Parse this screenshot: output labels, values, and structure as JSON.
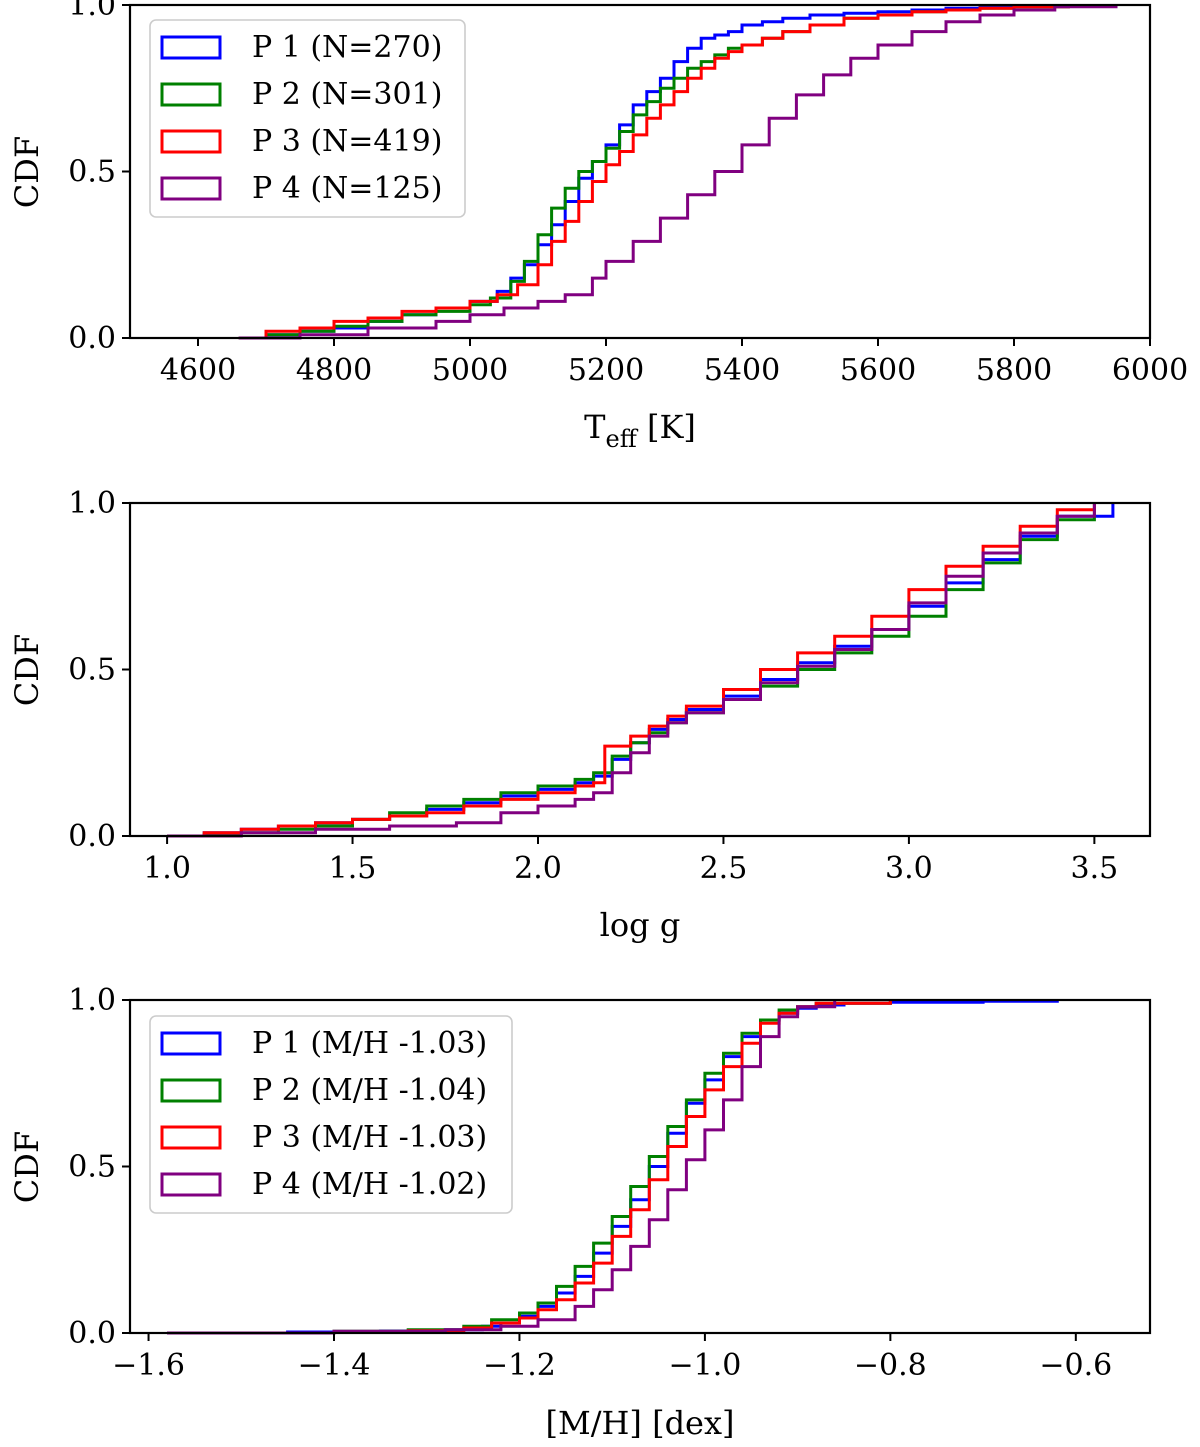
{
  "colors": {
    "P1": "#0000ff",
    "P2": "#008000",
    "P3": "#ff0000",
    "P4": "#800080"
  },
  "chart_data": [
    {
      "type": "line",
      "subtype": "step-cdf",
      "title": "",
      "xlabel_main": "T",
      "xlabel_sub": "eff",
      "xlabel_tail": " [K]",
      "ylabel": "CDF",
      "xlim": [
        4500,
        6000
      ],
      "ylim": [
        0,
        1.0
      ],
      "xticks": [
        4600,
        4800,
        5000,
        5200,
        5400,
        5600,
        5800,
        6000
      ],
      "xtick_labels": [
        "4600",
        "4800",
        "5000",
        "5200",
        "5400",
        "5600",
        "5800",
        "6000"
      ],
      "yticks": [
        0.0,
        0.5,
        1.0
      ],
      "ytick_labels": [
        "0.0",
        "0.5",
        "1.0"
      ],
      "legend": {
        "placement": "upper-left",
        "labels": [
          "P 1 (N=270)",
          "P 2 (N=301)",
          "P 3 (N=419)",
          "P 4 (N=125)"
        ]
      },
      "series": [
        {
          "name": "P 1",
          "color": "#0000ff",
          "x": [
            4660,
            4700,
            4750,
            4800,
            4850,
            4900,
            4950,
            5000,
            5040,
            5060,
            5080,
            5100,
            5120,
            5140,
            5160,
            5180,
            5200,
            5220,
            5240,
            5260,
            5280,
            5300,
            5320,
            5340,
            5360,
            5380,
            5400,
            5430,
            5460,
            5500,
            5550,
            5600,
            5650,
            5700,
            5750,
            5800,
            5870
          ],
          "y": [
            0.0,
            0.01,
            0.02,
            0.03,
            0.05,
            0.07,
            0.09,
            0.11,
            0.14,
            0.18,
            0.22,
            0.28,
            0.34,
            0.41,
            0.48,
            0.53,
            0.58,
            0.64,
            0.7,
            0.74,
            0.78,
            0.83,
            0.87,
            0.9,
            0.91,
            0.92,
            0.94,
            0.95,
            0.96,
            0.97,
            0.975,
            0.98,
            0.985,
            0.99,
            0.993,
            0.996,
            1.0
          ]
        },
        {
          "name": "P 2",
          "color": "#008000",
          "x": [
            4660,
            4700,
            4750,
            4800,
            4850,
            4900,
            4950,
            5000,
            5030,
            5060,
            5080,
            5100,
            5120,
            5140,
            5160,
            5180,
            5200,
            5220,
            5240,
            5260,
            5280,
            5300,
            5320,
            5340,
            5360,
            5380,
            5400,
            5430,
            5460,
            5500,
            5550,
            5600,
            5650,
            5700,
            5750,
            5800,
            5880
          ],
          "y": [
            0.0,
            0.01,
            0.02,
            0.035,
            0.05,
            0.07,
            0.08,
            0.1,
            0.12,
            0.17,
            0.23,
            0.31,
            0.39,
            0.45,
            0.5,
            0.53,
            0.57,
            0.62,
            0.67,
            0.71,
            0.75,
            0.78,
            0.81,
            0.83,
            0.85,
            0.87,
            0.88,
            0.9,
            0.92,
            0.94,
            0.96,
            0.97,
            0.98,
            0.985,
            0.99,
            0.995,
            1.0
          ]
        },
        {
          "name": "P 3",
          "color": "#ff0000",
          "x": [
            4660,
            4700,
            4750,
            4800,
            4850,
            4900,
            4950,
            5000,
            5040,
            5070,
            5100,
            5120,
            5140,
            5160,
            5180,
            5200,
            5220,
            5240,
            5260,
            5280,
            5300,
            5320,
            5340,
            5360,
            5380,
            5400,
            5430,
            5460,
            5500,
            5550,
            5600,
            5650,
            5700,
            5750,
            5800,
            5880
          ],
          "y": [
            0.0,
            0.02,
            0.03,
            0.05,
            0.06,
            0.08,
            0.09,
            0.11,
            0.13,
            0.16,
            0.22,
            0.29,
            0.35,
            0.41,
            0.47,
            0.52,
            0.56,
            0.61,
            0.66,
            0.7,
            0.74,
            0.78,
            0.81,
            0.84,
            0.86,
            0.88,
            0.9,
            0.92,
            0.94,
            0.96,
            0.97,
            0.98,
            0.985,
            0.99,
            0.995,
            1.0
          ]
        },
        {
          "name": "P 4",
          "color": "#800080",
          "x": [
            4660,
            4750,
            4850,
            4950,
            5000,
            5050,
            5100,
            5140,
            5180,
            5200,
            5240,
            5280,
            5320,
            5360,
            5400,
            5440,
            5480,
            5520,
            5560,
            5600,
            5650,
            5700,
            5750,
            5800,
            5860,
            5950
          ],
          "y": [
            0.0,
            0.01,
            0.03,
            0.05,
            0.07,
            0.09,
            0.11,
            0.13,
            0.18,
            0.23,
            0.29,
            0.36,
            0.43,
            0.5,
            0.58,
            0.66,
            0.73,
            0.79,
            0.84,
            0.88,
            0.92,
            0.95,
            0.97,
            0.985,
            0.995,
            1.0
          ]
        }
      ]
    },
    {
      "type": "line",
      "subtype": "step-cdf",
      "title": "",
      "xlabel": "log g",
      "ylabel": "CDF",
      "xlim": [
        0.9,
        3.65
      ],
      "ylim": [
        0,
        1.0
      ],
      "xticks": [
        1.0,
        1.5,
        2.0,
        2.5,
        3.0,
        3.5
      ],
      "xtick_labels": [
        "1.0",
        "1.5",
        "2.0",
        "2.5",
        "3.0",
        "3.5"
      ],
      "yticks": [
        0.0,
        0.5,
        1.0
      ],
      "ytick_labels": [
        "0.0",
        "0.5",
        "1.0"
      ],
      "series": [
        {
          "name": "P 1",
          "color": "#0000ff",
          "x": [
            1.0,
            1.1,
            1.2,
            1.3,
            1.4,
            1.5,
            1.6,
            1.7,
            1.8,
            1.9,
            2.0,
            2.1,
            2.15,
            2.2,
            2.25,
            2.3,
            2.35,
            2.4,
            2.5,
            2.6,
            2.7,
            2.8,
            2.9,
            3.0,
            3.1,
            3.2,
            3.3,
            3.4,
            3.55
          ],
          "y": [
            0.0,
            0.01,
            0.02,
            0.03,
            0.04,
            0.05,
            0.06,
            0.08,
            0.1,
            0.12,
            0.14,
            0.16,
            0.18,
            0.23,
            0.28,
            0.32,
            0.35,
            0.38,
            0.42,
            0.47,
            0.52,
            0.57,
            0.62,
            0.69,
            0.76,
            0.83,
            0.9,
            0.96,
            1.0
          ]
        },
        {
          "name": "P 2",
          "color": "#008000",
          "x": [
            1.0,
            1.1,
            1.2,
            1.3,
            1.4,
            1.5,
            1.6,
            1.7,
            1.8,
            1.9,
            2.0,
            2.1,
            2.15,
            2.2,
            2.25,
            2.3,
            2.35,
            2.4,
            2.5,
            2.6,
            2.7,
            2.8,
            2.9,
            3.0,
            3.1,
            3.2,
            3.3,
            3.4,
            3.5
          ],
          "y": [
            0.0,
            0.005,
            0.01,
            0.02,
            0.03,
            0.05,
            0.07,
            0.09,
            0.11,
            0.13,
            0.15,
            0.17,
            0.19,
            0.24,
            0.28,
            0.31,
            0.34,
            0.37,
            0.41,
            0.45,
            0.5,
            0.55,
            0.6,
            0.66,
            0.74,
            0.82,
            0.89,
            0.95,
            1.0
          ]
        },
        {
          "name": "P 3",
          "color": "#ff0000",
          "x": [
            1.0,
            1.1,
            1.2,
            1.3,
            1.4,
            1.5,
            1.6,
            1.7,
            1.8,
            1.9,
            2.0,
            2.1,
            2.15,
            2.18,
            2.25,
            2.3,
            2.35,
            2.4,
            2.5,
            2.6,
            2.7,
            2.8,
            2.9,
            3.0,
            3.1,
            3.2,
            3.3,
            3.4,
            3.5
          ],
          "y": [
            0.0,
            0.01,
            0.02,
            0.03,
            0.04,
            0.05,
            0.06,
            0.07,
            0.09,
            0.11,
            0.13,
            0.15,
            0.16,
            0.27,
            0.3,
            0.33,
            0.36,
            0.39,
            0.44,
            0.5,
            0.55,
            0.6,
            0.66,
            0.74,
            0.81,
            0.87,
            0.93,
            0.98,
            1.0
          ]
        },
        {
          "name": "P 4",
          "color": "#800080",
          "x": [
            1.0,
            1.2,
            1.4,
            1.6,
            1.78,
            1.9,
            2.0,
            2.1,
            2.15,
            2.2,
            2.25,
            2.3,
            2.35,
            2.4,
            2.5,
            2.6,
            2.7,
            2.8,
            2.9,
            3.0,
            3.1,
            3.2,
            3.3,
            3.4,
            3.5
          ],
          "y": [
            0.0,
            0.01,
            0.02,
            0.03,
            0.04,
            0.07,
            0.09,
            0.11,
            0.13,
            0.19,
            0.25,
            0.3,
            0.34,
            0.37,
            0.41,
            0.46,
            0.51,
            0.56,
            0.62,
            0.7,
            0.78,
            0.85,
            0.91,
            0.96,
            1.0
          ]
        }
      ]
    },
    {
      "type": "line",
      "subtype": "step-cdf",
      "title": "",
      "xlabel": "[M/H] [dex]",
      "ylabel": "CDF",
      "xlim": [
        -1.62,
        -0.52
      ],
      "ylim": [
        0,
        1.0
      ],
      "xticks": [
        -1.6,
        -1.4,
        -1.2,
        -1.0,
        -0.8,
        -0.6
      ],
      "xtick_labels": [
        "−1.6",
        "−1.4",
        "−1.2",
        "−1.0",
        "−0.8",
        "−0.6"
      ],
      "yticks": [
        0.0,
        0.5,
        1.0
      ],
      "ytick_labels": [
        "0.0",
        "0.5",
        "1.0"
      ],
      "legend": {
        "placement": "upper-left",
        "labels": [
          "P 1 (M/H -1.03)",
          "P 2 (M/H -1.04)",
          "P 3 (M/H -1.03)",
          "P 4 (M/H -1.02)"
        ]
      },
      "series": [
        {
          "name": "P 1",
          "color": "#0000ff",
          "x": [
            -1.58,
            -1.45,
            -1.35,
            -1.28,
            -1.24,
            -1.22,
            -1.2,
            -1.18,
            -1.16,
            -1.14,
            -1.12,
            -1.1,
            -1.08,
            -1.06,
            -1.04,
            -1.02,
            -1.0,
            -0.98,
            -0.96,
            -0.94,
            -0.92,
            -0.9,
            -0.88,
            -0.85,
            -0.8,
            -0.7,
            -0.62
          ],
          "y": [
            0.0,
            0.003,
            0.006,
            0.01,
            0.02,
            0.03,
            0.05,
            0.08,
            0.12,
            0.17,
            0.24,
            0.32,
            0.4,
            0.5,
            0.6,
            0.69,
            0.76,
            0.83,
            0.89,
            0.94,
            0.96,
            0.975,
            0.985,
            0.99,
            0.993,
            0.996,
            1.0
          ]
        },
        {
          "name": "P 2",
          "color": "#008000",
          "x": [
            -1.5,
            -1.4,
            -1.32,
            -1.26,
            -1.23,
            -1.2,
            -1.18,
            -1.16,
            -1.14,
            -1.12,
            -1.1,
            -1.08,
            -1.06,
            -1.04,
            -1.02,
            -1.0,
            -0.98,
            -0.96,
            -0.94,
            -0.92,
            -0.9,
            -0.88,
            -0.8
          ],
          "y": [
            0.0,
            0.005,
            0.01,
            0.02,
            0.04,
            0.06,
            0.09,
            0.14,
            0.2,
            0.27,
            0.35,
            0.44,
            0.53,
            0.62,
            0.7,
            0.78,
            0.84,
            0.9,
            0.94,
            0.97,
            0.98,
            0.99,
            1.0
          ]
        },
        {
          "name": "P 3",
          "color": "#ff0000",
          "x": [
            -1.5,
            -1.4,
            -1.32,
            -1.26,
            -1.23,
            -1.2,
            -1.18,
            -1.16,
            -1.14,
            -1.12,
            -1.1,
            -1.08,
            -1.06,
            -1.04,
            -1.02,
            -1.0,
            -0.98,
            -0.96,
            -0.94,
            -0.92,
            -0.9,
            -0.88,
            -0.8
          ],
          "y": [
            0.0,
            0.003,
            0.007,
            0.015,
            0.03,
            0.045,
            0.07,
            0.1,
            0.15,
            0.21,
            0.29,
            0.37,
            0.46,
            0.56,
            0.65,
            0.73,
            0.8,
            0.87,
            0.93,
            0.96,
            0.98,
            0.99,
            1.0
          ]
        },
        {
          "name": "P 4",
          "color": "#800080",
          "x": [
            -1.58,
            -1.4,
            -1.28,
            -1.22,
            -1.18,
            -1.14,
            -1.12,
            -1.1,
            -1.08,
            -1.06,
            -1.04,
            -1.02,
            -1.0,
            -0.98,
            -0.96,
            -0.94,
            -0.92,
            -0.9,
            -0.86
          ],
          "y": [
            0.0,
            0.005,
            0.01,
            0.02,
            0.04,
            0.08,
            0.13,
            0.19,
            0.26,
            0.34,
            0.43,
            0.52,
            0.61,
            0.7,
            0.8,
            0.89,
            0.95,
            0.98,
            1.0
          ]
        }
      ]
    }
  ]
}
